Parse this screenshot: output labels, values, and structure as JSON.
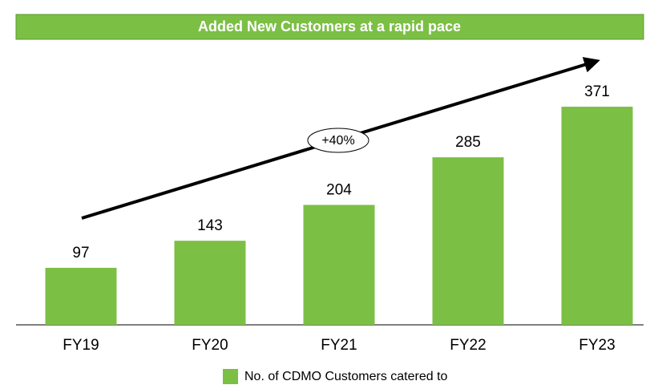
{
  "chart_data": {
    "type": "bar",
    "title": "Added New Customers at a rapid pace",
    "categories": [
      "FY19",
      "FY20",
      "FY21",
      "FY22",
      "FY23"
    ],
    "series": [
      {
        "name": "No. of CDMO Customers catered to",
        "color": "#7cbf45",
        "values": [
          97,
          143,
          204,
          285,
          371
        ]
      }
    ],
    "annotation": "+40%"
  }
}
